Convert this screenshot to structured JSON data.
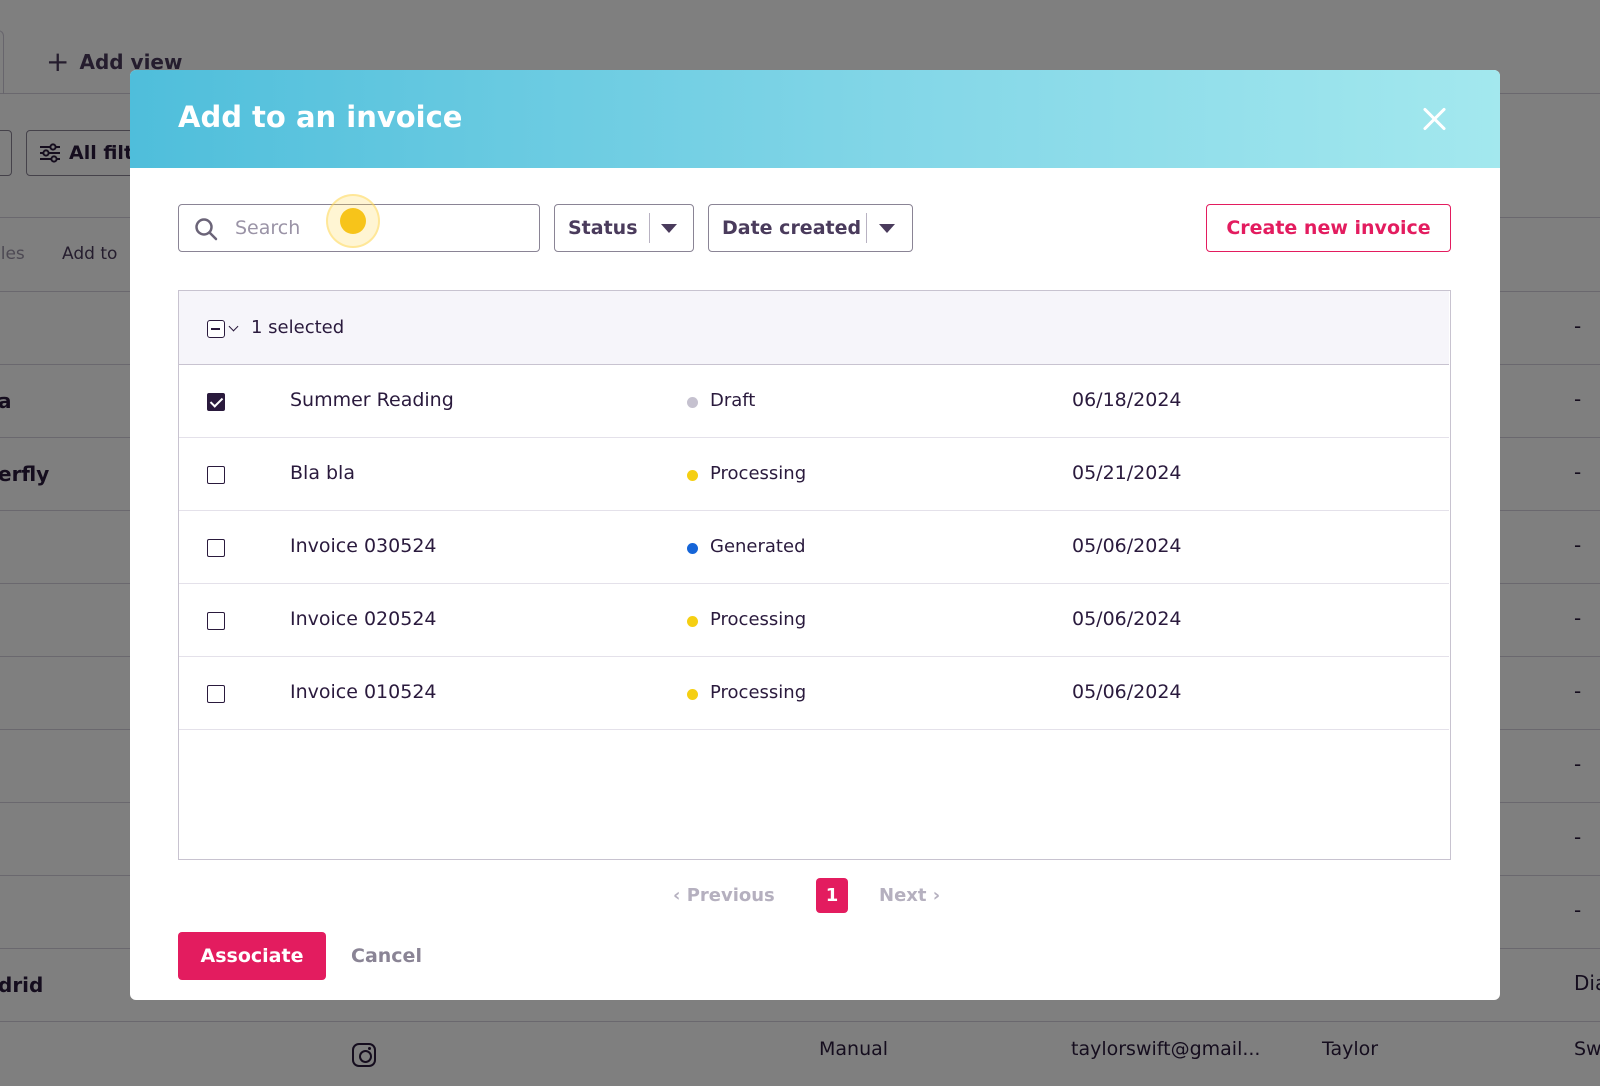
{
  "background": {
    "add_view_label": "Add view",
    "all_filters_label": "All filt",
    "files_label": "iles",
    "add_to_label": "Add to",
    "row_left_labels": [
      "",
      "a",
      "erfly",
      "",
      "",
      "",
      "",
      "",
      "",
      "drid"
    ],
    "row_right_labels": [
      "-",
      "-",
      "-",
      "-",
      "-",
      "-",
      "-",
      "-",
      "-",
      "Dia"
    ],
    "last_row": {
      "source": "Manual",
      "email": "taylorswift@gmail...",
      "first_name": "Taylor",
      "last_name": "Sw"
    }
  },
  "modal": {
    "title": "Add to an invoice",
    "close_label": "Close",
    "search": {
      "placeholder": "Search",
      "value": ""
    },
    "filters": {
      "status_label": "Status",
      "date_label": "Date created"
    },
    "create_label": "Create new invoice",
    "selected_label": "1 selected",
    "invoices": [
      {
        "name": "Summer Reading",
        "status": "Draft",
        "status_color": "#c5c1cf",
        "date": "06/18/2024",
        "checked": true
      },
      {
        "name": "Bla bla",
        "status": "Processing",
        "status_color": "#f5cf12",
        "date": "05/21/2024",
        "checked": false
      },
      {
        "name": "Invoice 030524",
        "status": "Generated",
        "status_color": "#1565d8",
        "date": "05/06/2024",
        "checked": false
      },
      {
        "name": "Invoice 020524",
        "status": "Processing",
        "status_color": "#f5cf12",
        "date": "05/06/2024",
        "checked": false
      },
      {
        "name": "Invoice 010524",
        "status": "Processing",
        "status_color": "#f5cf12",
        "date": "05/06/2024",
        "checked": false
      }
    ],
    "pagination": {
      "previous_label": "Previous",
      "current_page": "1",
      "next_label": "Next"
    },
    "associate_label": "Associate",
    "cancel_label": "Cancel"
  },
  "icons": {
    "search": "search-icon",
    "close": "close-icon",
    "filter": "sliders-icon",
    "caret": "caret-down-icon",
    "instagram": "instagram-icon",
    "plus": "plus-icon"
  },
  "colors": {
    "accent": "#e31c5f",
    "header_start": "#4fbedb",
    "header_end": "#a3e8ee",
    "text": "#2a1a3d"
  }
}
